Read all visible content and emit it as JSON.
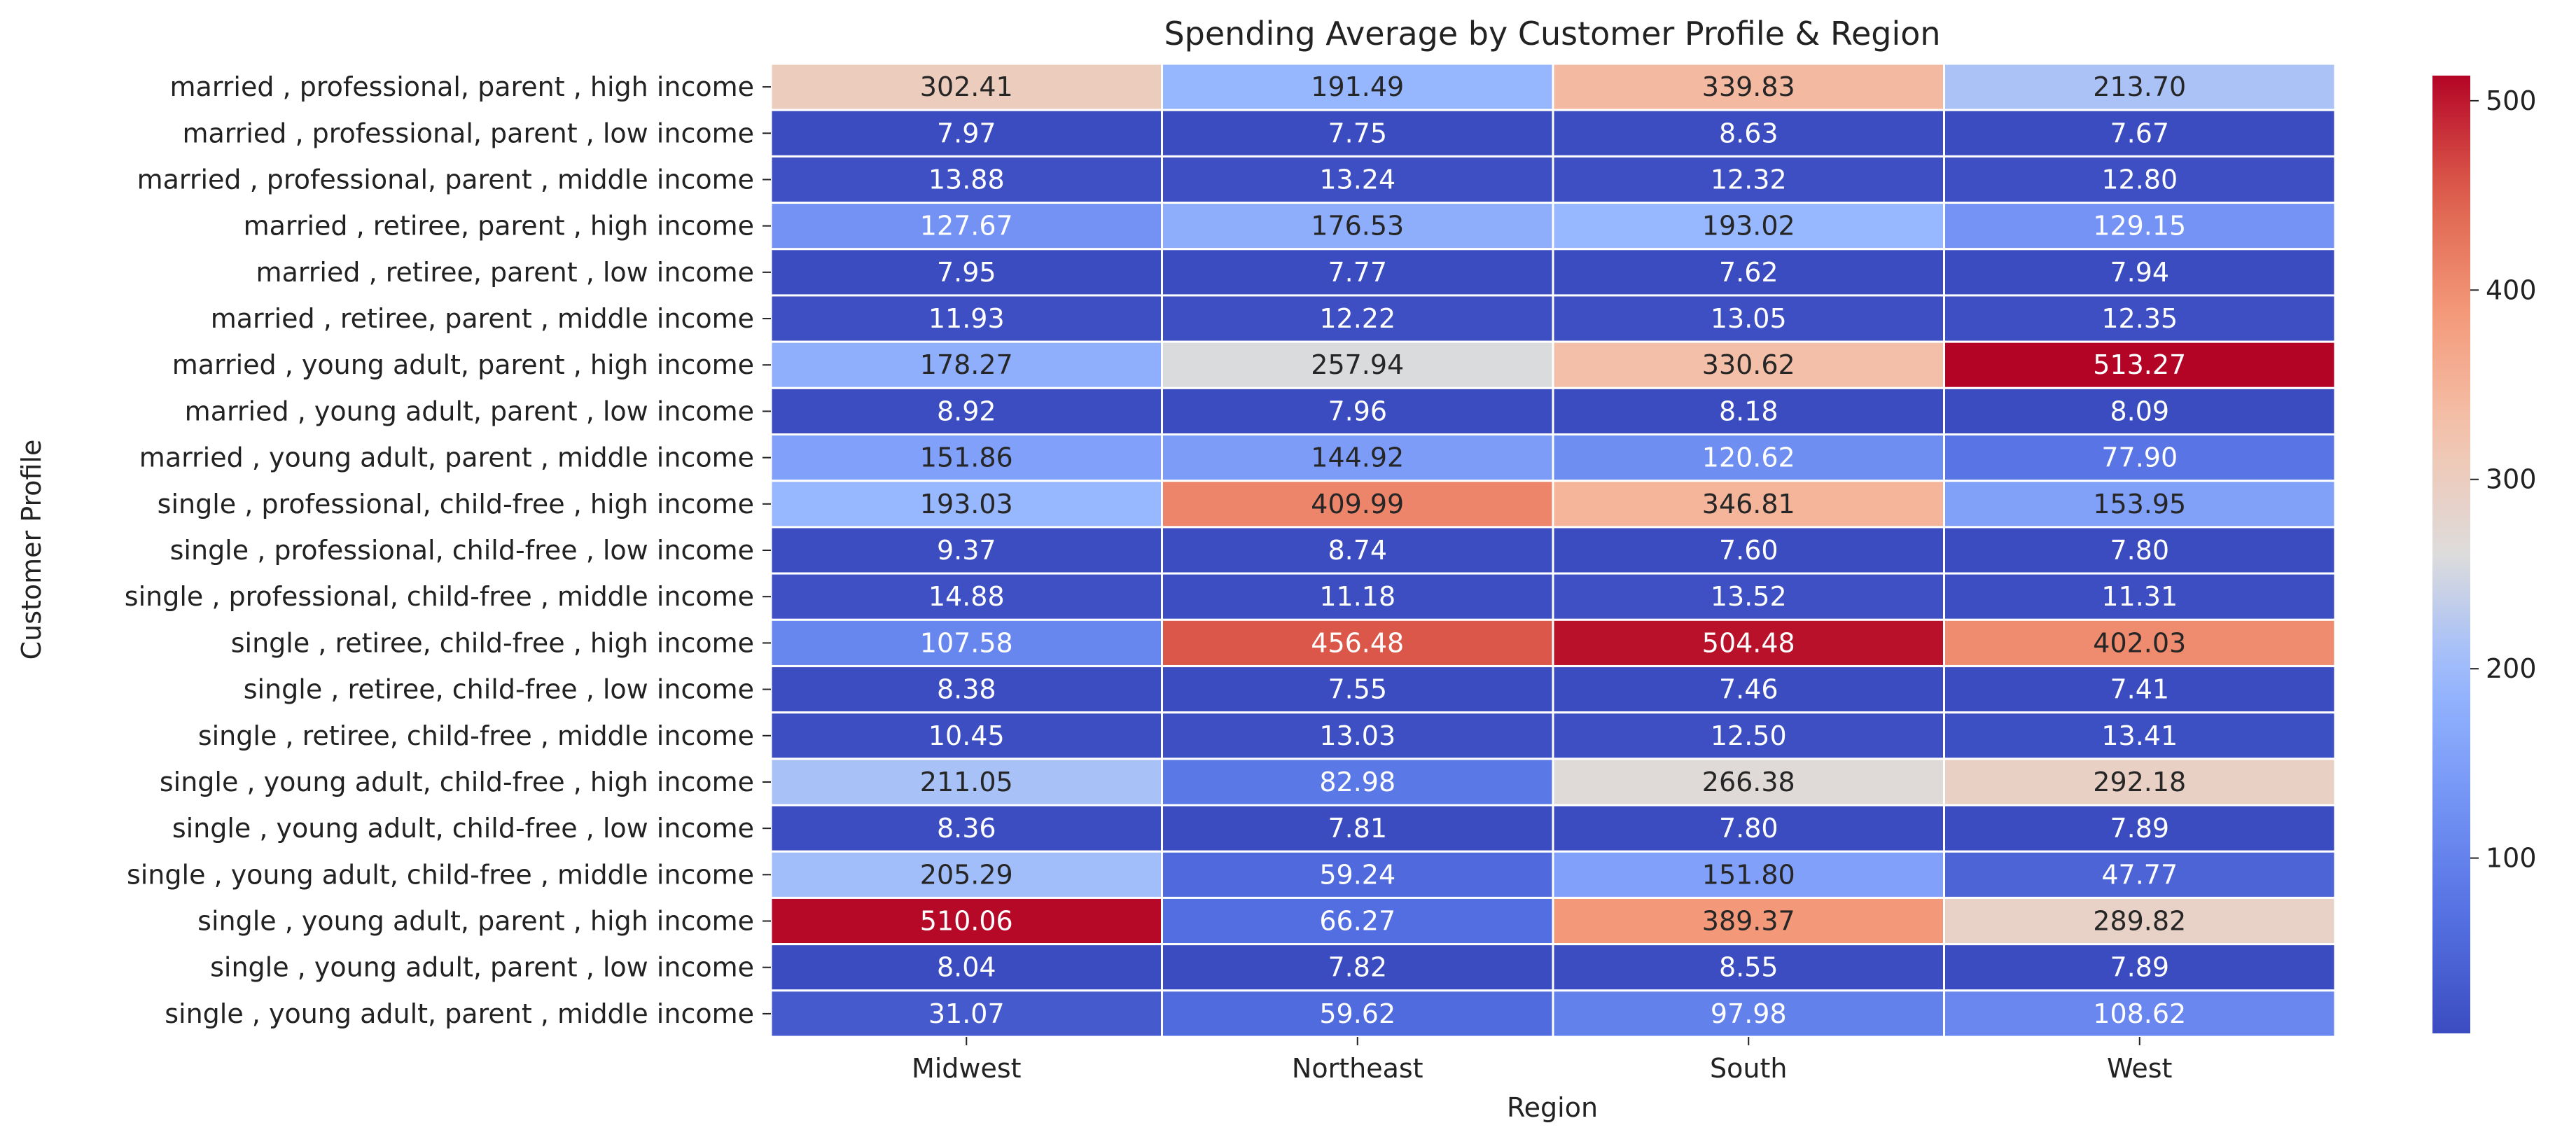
{
  "chart_data": {
    "type": "heatmap",
    "title": "Spending Average by Customer Profile & Region",
    "xlabel": "Region",
    "ylabel": "Customer Profile",
    "columns": [
      "Midwest",
      "Northeast",
      "South",
      "West"
    ],
    "rows": [
      "married , professional, parent , high income",
      "married , professional, parent , low income",
      "married , professional, parent , middle income",
      "married , retiree, parent , high income",
      "married , retiree, parent , low income",
      "married , retiree, parent , middle income",
      "married , young adult, parent , high income",
      "married , young adult, parent , low income",
      "married , young adult, parent , middle income",
      "single , professional, child-free , high income",
      "single , professional, child-free , low income",
      "single , professional, child-free , middle income",
      "single , retiree, child-free , high income",
      "single , retiree, child-free , low income",
      "single , retiree, child-free , middle income",
      "single , young adult, child-free , high income",
      "single , young adult, child-free , low income",
      "single , young adult, child-free , middle income",
      "single , young adult, parent , high income",
      "single , young adult, parent , low income",
      "single , young adult, parent , middle income"
    ],
    "values": [
      [
        302.41,
        191.49,
        339.83,
        213.7
      ],
      [
        7.97,
        7.75,
        8.63,
        7.67
      ],
      [
        13.88,
        13.24,
        12.32,
        12.8
      ],
      [
        127.67,
        176.53,
        193.02,
        129.15
      ],
      [
        7.95,
        7.77,
        7.62,
        7.94
      ],
      [
        11.93,
        12.22,
        13.05,
        12.35
      ],
      [
        178.27,
        257.94,
        330.62,
        513.27
      ],
      [
        8.92,
        7.96,
        8.18,
        8.09
      ],
      [
        151.86,
        144.92,
        120.62,
        77.9
      ],
      [
        193.03,
        409.99,
        346.81,
        153.95
      ],
      [
        9.37,
        8.74,
        7.6,
        7.8
      ],
      [
        14.88,
        11.18,
        13.52,
        11.31
      ],
      [
        107.58,
        456.48,
        504.48,
        402.03
      ],
      [
        8.38,
        7.55,
        7.46,
        7.41
      ],
      [
        10.45,
        13.03,
        12.5,
        13.41
      ],
      [
        211.05,
        82.98,
        266.38,
        292.18
      ],
      [
        8.36,
        7.81,
        7.8,
        7.89
      ],
      [
        205.29,
        59.24,
        151.8,
        47.77
      ],
      [
        510.06,
        66.27,
        389.37,
        289.82
      ],
      [
        8.04,
        7.82,
        8.55,
        7.89
      ],
      [
        31.07,
        59.62,
        97.98,
        108.62
      ]
    ],
    "value_format": "2 decimals",
    "colormap": "coolwarm",
    "color_range": [
      7.41,
      513.27
    ],
    "colorbar_ticks": [
      100,
      200,
      300,
      400,
      500
    ],
    "cell_border_color": "#ffffff",
    "colorbar_position": "right",
    "grid": false
  }
}
